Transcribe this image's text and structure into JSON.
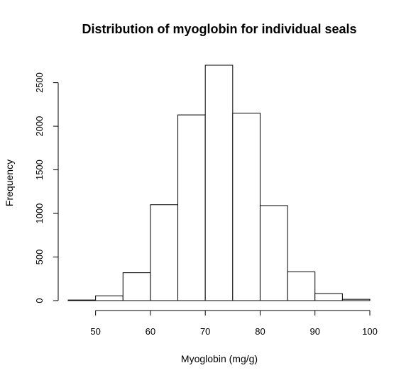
{
  "chart_data": {
    "type": "bar",
    "title": "Distribution of myoglobin for individual seals",
    "xlabel": "Myoglobin (mg/g)",
    "ylabel": "Frequency",
    "bin_edges": [
      45,
      50,
      55,
      60,
      65,
      70,
      75,
      80,
      85,
      90,
      95,
      100
    ],
    "values": [
      7,
      55,
      320,
      1100,
      2130,
      2700,
      2150,
      1090,
      330,
      80,
      15
    ],
    "xlim": [
      45,
      100
    ],
    "ylim": [
      0,
      2700
    ],
    "x_ticks": [
      "50",
      "60",
      "70",
      "80",
      "90",
      "100"
    ],
    "y_ticks": [
      "0",
      "500",
      "1000",
      "1500",
      "2000",
      "2500"
    ],
    "grid": false,
    "legend": "none"
  }
}
